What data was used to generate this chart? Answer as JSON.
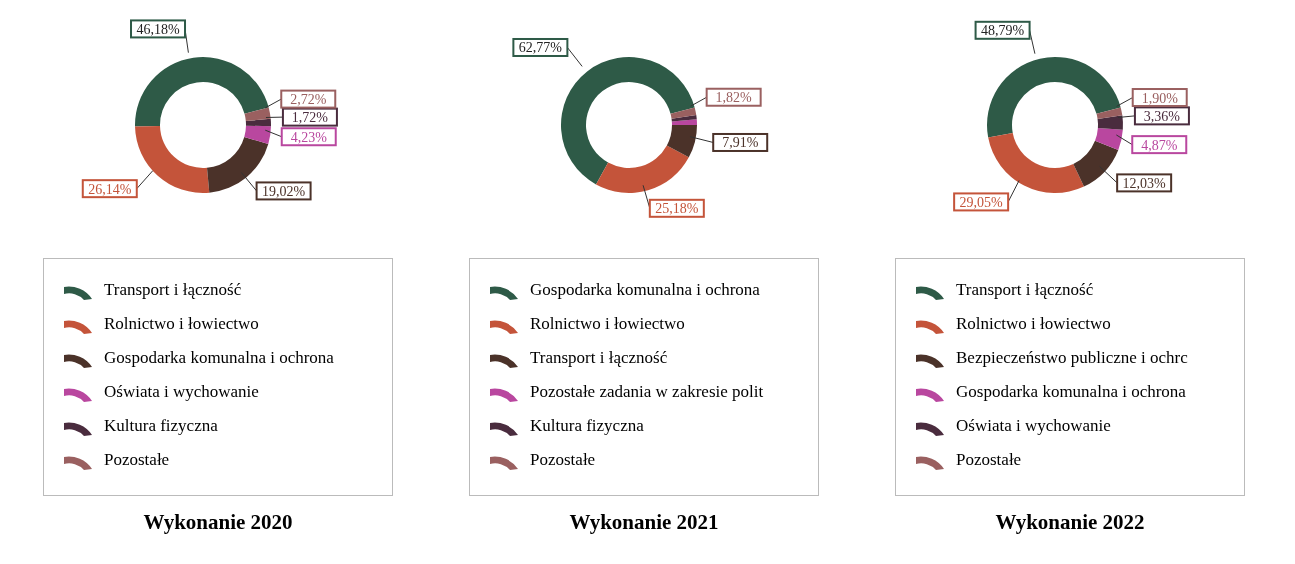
{
  "chart_data": [
    {
      "type": "donut",
      "title": "Wykonanie 2020",
      "legend": "bottom",
      "categories": [
        "Transport i łączność",
        "Rolnictwo i łowiectwo",
        "Gospodarka komunalna i ochrona",
        "Oświata i wychowanie",
        "Kultura fizyczna",
        "Pozostałe"
      ],
      "values": [
        46.18,
        26.14,
        19.02,
        4.23,
        1.72,
        2.72
      ],
      "value_labels": [
        "46,18%",
        "26,14%",
        "19,02%",
        "4,23%",
        "1,72%",
        "2,72%"
      ],
      "colors": [
        "#2e5a47",
        "#c4543a",
        "#4b3229",
        "#b9479f",
        "#4a2c3e",
        "#9a6060"
      ]
    },
    {
      "type": "donut",
      "title": "Wykonanie 2021",
      "legend": "bottom",
      "categories": [
        "Gospodarka komunalna i ochrona",
        "Rolnictwo i łowiectwo",
        "Transport i łączność",
        "Pozostałe zadania w zakresie polit",
        "Kultura fizyczna",
        "Pozostałe"
      ],
      "values": [
        62.77,
        25.18,
        7.91,
        1.3,
        1.02,
        1.82
      ],
      "value_labels": [
        "62,77%",
        "25,18%",
        "7,91%",
        null,
        null,
        "1,82%"
      ],
      "colors": [
        "#2e5a47",
        "#c4543a",
        "#4b3229",
        "#b9479f",
        "#4a2c3e",
        "#9a6060"
      ]
    },
    {
      "type": "donut",
      "title": "Wykonanie 2022",
      "legend": "bottom",
      "categories": [
        "Transport i łączność",
        "Rolnictwo i łowiectwo",
        "Bezpieczeństwo publiczne i ochrc",
        "Gospodarka komunalna i ochrona",
        "Oświata i wychowanie",
        "Pozostałe"
      ],
      "values": [
        48.79,
        29.05,
        12.03,
        4.87,
        3.36,
        1.9
      ],
      "value_labels": [
        "48,79%",
        "29,05%",
        "12,03%",
        "4,87%",
        "3,36%",
        "1,90%"
      ],
      "colors": [
        "#2e5a47",
        "#c4543a",
        "#4b3229",
        "#b9479f",
        "#4a2c3e",
        "#9a6060"
      ]
    }
  ]
}
